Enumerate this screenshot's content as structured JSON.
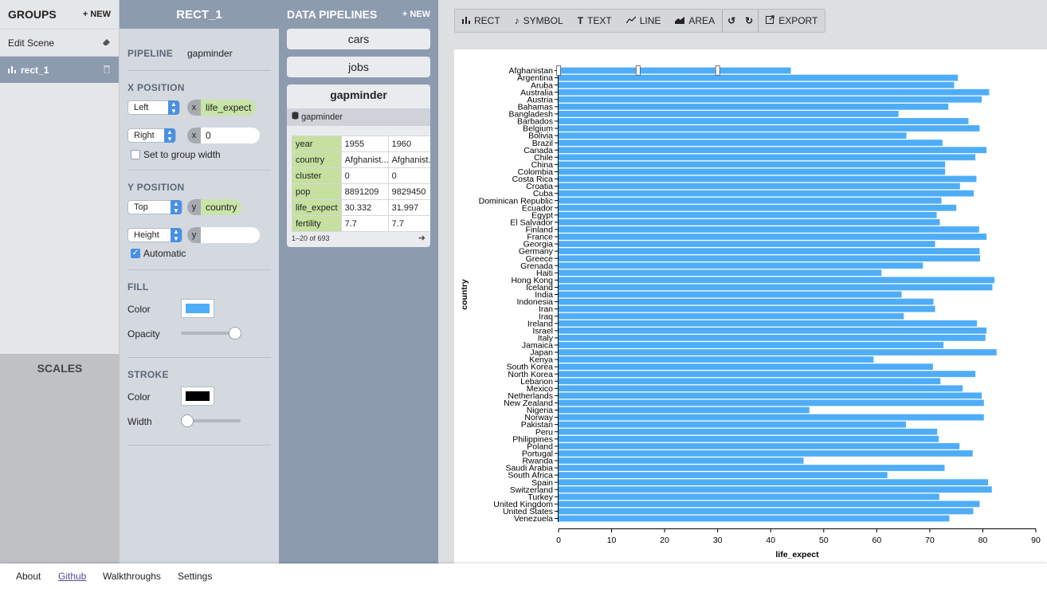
{
  "groups": {
    "title": "GROUPS",
    "new_label": "+ NEW",
    "items": [
      {
        "label": "Edit Scene"
      },
      {
        "label": "rect_1"
      }
    ]
  },
  "scales": {
    "title": "SCALES"
  },
  "inspector": {
    "title": "RECT_1",
    "pipeline_label": "PIPELINE",
    "pipeline_value": "gapminder",
    "x_position": {
      "title": "X POSITION",
      "first_select": "Left",
      "first_channel": "x",
      "first_field": "life_expect",
      "second_select": "Right",
      "second_channel": "x",
      "second_value": "0",
      "checkbox_label": "Set to group width"
    },
    "y_position": {
      "title": "Y POSITION",
      "first_select": "Top",
      "first_channel": "y",
      "first_field": "country",
      "second_select": "Height",
      "second_channel": "y",
      "checkbox_label": "Automatic"
    },
    "fill": {
      "title": "FILL",
      "color_label": "Color",
      "color": "#4fadf8",
      "opacity_label": "Opacity",
      "opacity": 1
    },
    "stroke": {
      "title": "STROKE",
      "color_label": "Color",
      "color": "#000000",
      "width_label": "Width",
      "width": 0
    }
  },
  "pipelines": {
    "title": "DATA PIPELINES",
    "new_label": "+ NEW",
    "items": [
      "cars",
      "jobs"
    ],
    "active": {
      "name": "gapminder",
      "source": "gapminder",
      "table": [
        {
          "key": "year",
          "v1": "1955",
          "v2": "1960"
        },
        {
          "key": "country",
          "v1": "Afghanist...",
          "v2": "Afghanist..."
        },
        {
          "key": "cluster",
          "v1": "0",
          "v2": "0"
        },
        {
          "key": "pop",
          "v1": "8891209",
          "v2": "9829450"
        },
        {
          "key": "life_expect",
          "v1": "30.332",
          "v2": "31.997"
        },
        {
          "key": "fertility",
          "v1": "7.7",
          "v2": "7.7"
        }
      ],
      "pager": "1–20 of 693"
    }
  },
  "toolbar": {
    "buttons": [
      {
        "icon": "bar-chart-icon",
        "label": "RECT"
      },
      {
        "icon": "symbol-icon",
        "label": "SYMBOL"
      },
      {
        "icon": "text-icon",
        "label": "TEXT"
      },
      {
        "icon": "line-icon",
        "label": "LINE"
      },
      {
        "icon": "area-icon",
        "label": "AREA"
      }
    ],
    "export_label": "EXPORT"
  },
  "chart_data": {
    "type": "bar",
    "orientation": "horizontal",
    "xlabel": "life_expect",
    "ylabel": "country",
    "xlim": [
      0,
      90
    ],
    "xticks": [
      0,
      10,
      20,
      30,
      40,
      50,
      60,
      70,
      80,
      90
    ],
    "bar_color": "#4fadf8",
    "categories": [
      "Afghanistan",
      "Argentina",
      "Aruba",
      "Australia",
      "Austria",
      "Bahamas",
      "Bangladesh",
      "Barbados",
      "Belgium",
      "Bolivia",
      "Brazil",
      "Canada",
      "Chile",
      "China",
      "Colombia",
      "Costa Rica",
      "Croatia",
      "Cuba",
      "Dominican Republic",
      "Ecuador",
      "Egypt",
      "El Salvador",
      "Finland",
      "France",
      "Georgia",
      "Germany",
      "Greece",
      "Grenada",
      "Haiti",
      "Hong Kong",
      "Iceland",
      "India",
      "Indonesia",
      "Iran",
      "Iraq",
      "Ireland",
      "Israel",
      "Italy",
      "Jamaica",
      "Japan",
      "Kenya",
      "South Korea",
      "North Korea",
      "Lebanon",
      "Mexico",
      "Netherlands",
      "New Zealand",
      "Nigeria",
      "Norway",
      "Pakistan",
      "Peru",
      "Philippines",
      "Poland",
      "Portugal",
      "Rwanda",
      "Saudi Arabia",
      "South Africa",
      "Spain",
      "Switzerland",
      "Turkey",
      "United Kingdom",
      "United States",
      "Venezuela"
    ],
    "values": [
      43.8,
      75.3,
      74.6,
      81.2,
      79.8,
      73.5,
      64.1,
      77.3,
      79.4,
      65.6,
      72.4,
      80.7,
      78.6,
      72.9,
      72.9,
      78.8,
      75.7,
      78.3,
      72.2,
      75.0,
      71.3,
      71.9,
      79.3,
      80.7,
      71.0,
      79.4,
      79.5,
      68.7,
      60.9,
      82.2,
      81.8,
      64.7,
      70.7,
      71.0,
      65.1,
      78.9,
      80.7,
      80.5,
      72.6,
      82.6,
      59.4,
      70.6,
      78.6,
      72.0,
      76.2,
      79.8,
      80.2,
      47.3,
      80.2,
      65.5,
      71.4,
      71.7,
      75.6,
      78.1,
      46.2,
      72.8,
      62.0,
      81.0,
      81.7,
      71.8,
      79.4,
      78.2,
      73.7
    ]
  },
  "footer": {
    "links": [
      "About",
      "Github",
      "Walkthroughs",
      "Settings"
    ]
  }
}
